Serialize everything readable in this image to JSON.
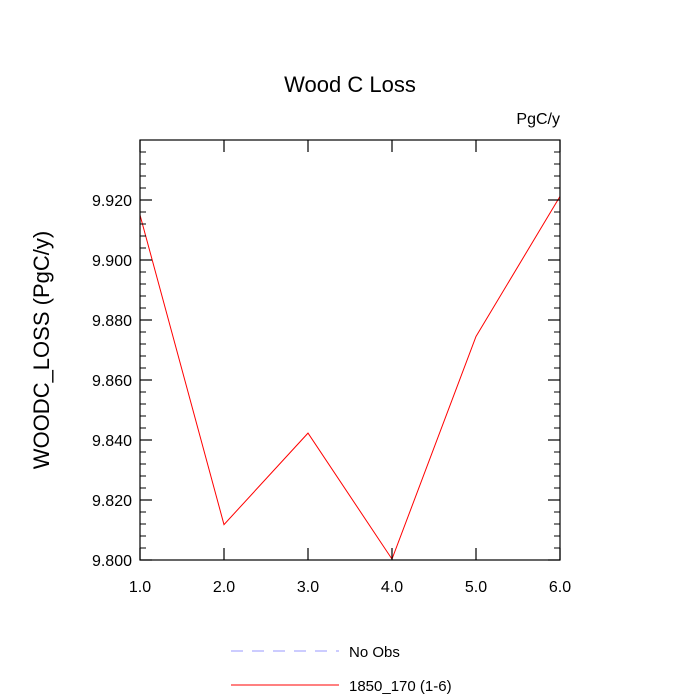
{
  "chart_data": {
    "type": "line",
    "title": "Wood C Loss",
    "units_label": "PgC/y",
    "xlabel": "",
    "ylabel": "WOODC_LOSS  (PgC/y)",
    "xlim": [
      1.0,
      6.0
    ],
    "ylim": [
      9.8,
      9.94
    ],
    "x_ticks": [
      1.0,
      2.0,
      3.0,
      4.0,
      5.0,
      6.0
    ],
    "x_tick_labels": [
      "1.0",
      "2.0",
      "3.0",
      "4.0",
      "5.0",
      "6.0"
    ],
    "y_ticks": [
      9.8,
      9.82,
      9.84,
      9.86,
      9.88,
      9.9,
      9.92
    ],
    "y_tick_labels": [
      "9.800",
      "9.820",
      "9.840",
      "9.860",
      "9.880",
      "9.900",
      "9.920"
    ],
    "grid": false,
    "legend_position": "bottom",
    "series": [
      {
        "name": "1850_170 (1-6)",
        "color": "#ff0000",
        "style": "solid",
        "x": [
          1.0,
          2.0,
          3.0,
          4.0,
          5.0,
          6.0
        ],
        "values": [
          9.915,
          9.8118,
          9.8423,
          9.8003,
          9.8745,
          9.9212
        ]
      }
    ],
    "legend": [
      {
        "label": "No Obs",
        "color": "#9999ff",
        "style": "dashed"
      },
      {
        "label": "1850_170 (1-6)",
        "color": "#ff0000",
        "style": "solid"
      }
    ]
  }
}
